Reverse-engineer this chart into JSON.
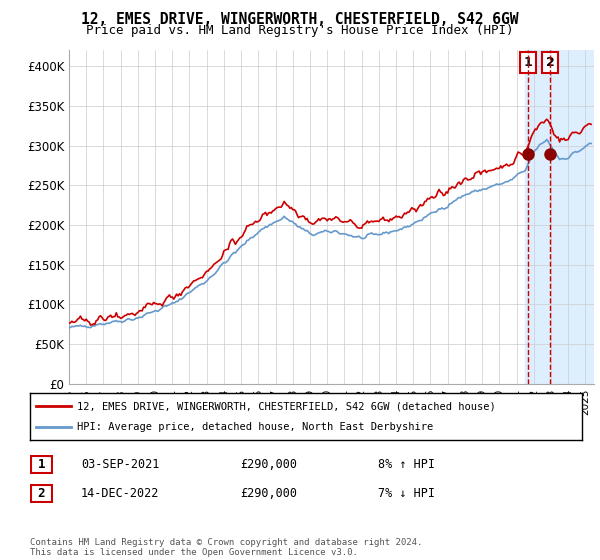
{
  "title": "12, EMES DRIVE, WINGERWORTH, CHESTERFIELD, S42 6GW",
  "subtitle": "Price paid vs. HM Land Registry's House Price Index (HPI)",
  "legend_line1": "12, EMES DRIVE, WINGERWORTH, CHESTERFIELD, S42 6GW (detached house)",
  "legend_line2": "HPI: Average price, detached house, North East Derbyshire",
  "transaction1_date": "03-SEP-2021",
  "transaction1_price": "£290,000",
  "transaction1_hpi": "8% ↑ HPI",
  "transaction2_date": "14-DEC-2022",
  "transaction2_price": "£290,000",
  "transaction2_hpi": "7% ↓ HPI",
  "footer": "Contains HM Land Registry data © Crown copyright and database right 2024.\nThis data is licensed under the Open Government Licence v3.0.",
  "hpi_color": "#6699cc",
  "price_color": "#cc0000",
  "marker_color": "#8b0000",
  "dashed_line_color": "#cc0000",
  "highlight_color": "#ddeeff",
  "annotation_box_color": "#cc0000",
  "grid_color": "#cccccc",
  "background_color": "#ffffff",
  "ylim": [
    0,
    420000
  ],
  "yticks": [
    0,
    50000,
    100000,
    150000,
    200000,
    250000,
    300000,
    350000,
    400000
  ],
  "ytick_labels": [
    "£0",
    "£50K",
    "£100K",
    "£150K",
    "£200K",
    "£250K",
    "£300K",
    "£350K",
    "£400K"
  ],
  "transaction1_x": 2021.67,
  "transaction2_x": 2022.95,
  "transaction1_y": 290000,
  "transaction2_y": 290000,
  "xmin": 1995.0,
  "xmax": 2025.5,
  "highlight_start": 2021.5,
  "highlight_end": 2025.5
}
